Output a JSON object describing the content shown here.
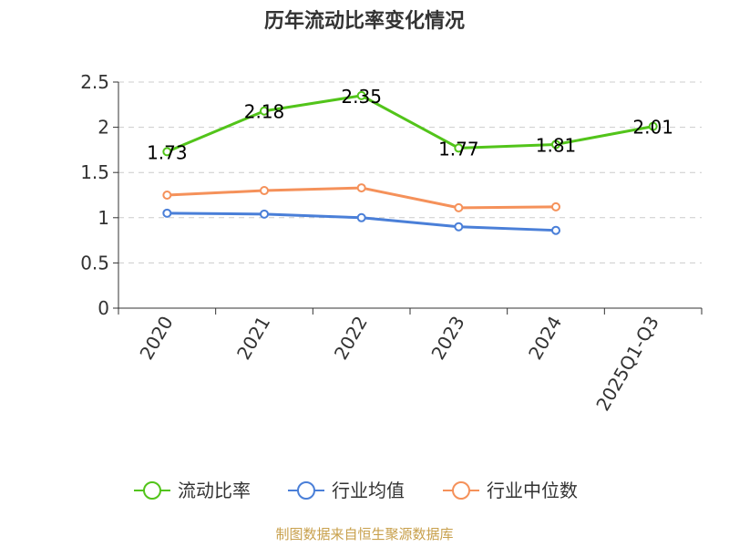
{
  "chart_data": {
    "type": "line",
    "title": "历年流动比率变化情况",
    "categories": [
      "2020",
      "2021",
      "2022",
      "2023",
      "2024",
      "2025Q1-Q3"
    ],
    "ylim": [
      0,
      2.5
    ],
    "yticks": [
      "0",
      "0.5",
      "1",
      "1.5",
      "2",
      "2.5"
    ],
    "grid": true,
    "legend_position": "bottom",
    "series": [
      {
        "name": "流动比率",
        "color": "#52c41a",
        "values": [
          1.73,
          2.18,
          2.35,
          1.77,
          1.81,
          2.01
        ],
        "labels": [
          "1.73",
          "2.18",
          "2.35",
          "1.77",
          "1.81",
          "2.01"
        ]
      },
      {
        "name": "行业均值",
        "color": "#4a7fd8",
        "values": [
          1.05,
          1.04,
          1.0,
          0.9,
          0.86,
          null
        ]
      },
      {
        "name": "行业中位数",
        "color": "#f5915a",
        "values": [
          1.25,
          1.3,
          1.33,
          1.11,
          1.12,
          null
        ]
      }
    ],
    "source": "制图数据来自恒生聚源数据库"
  }
}
